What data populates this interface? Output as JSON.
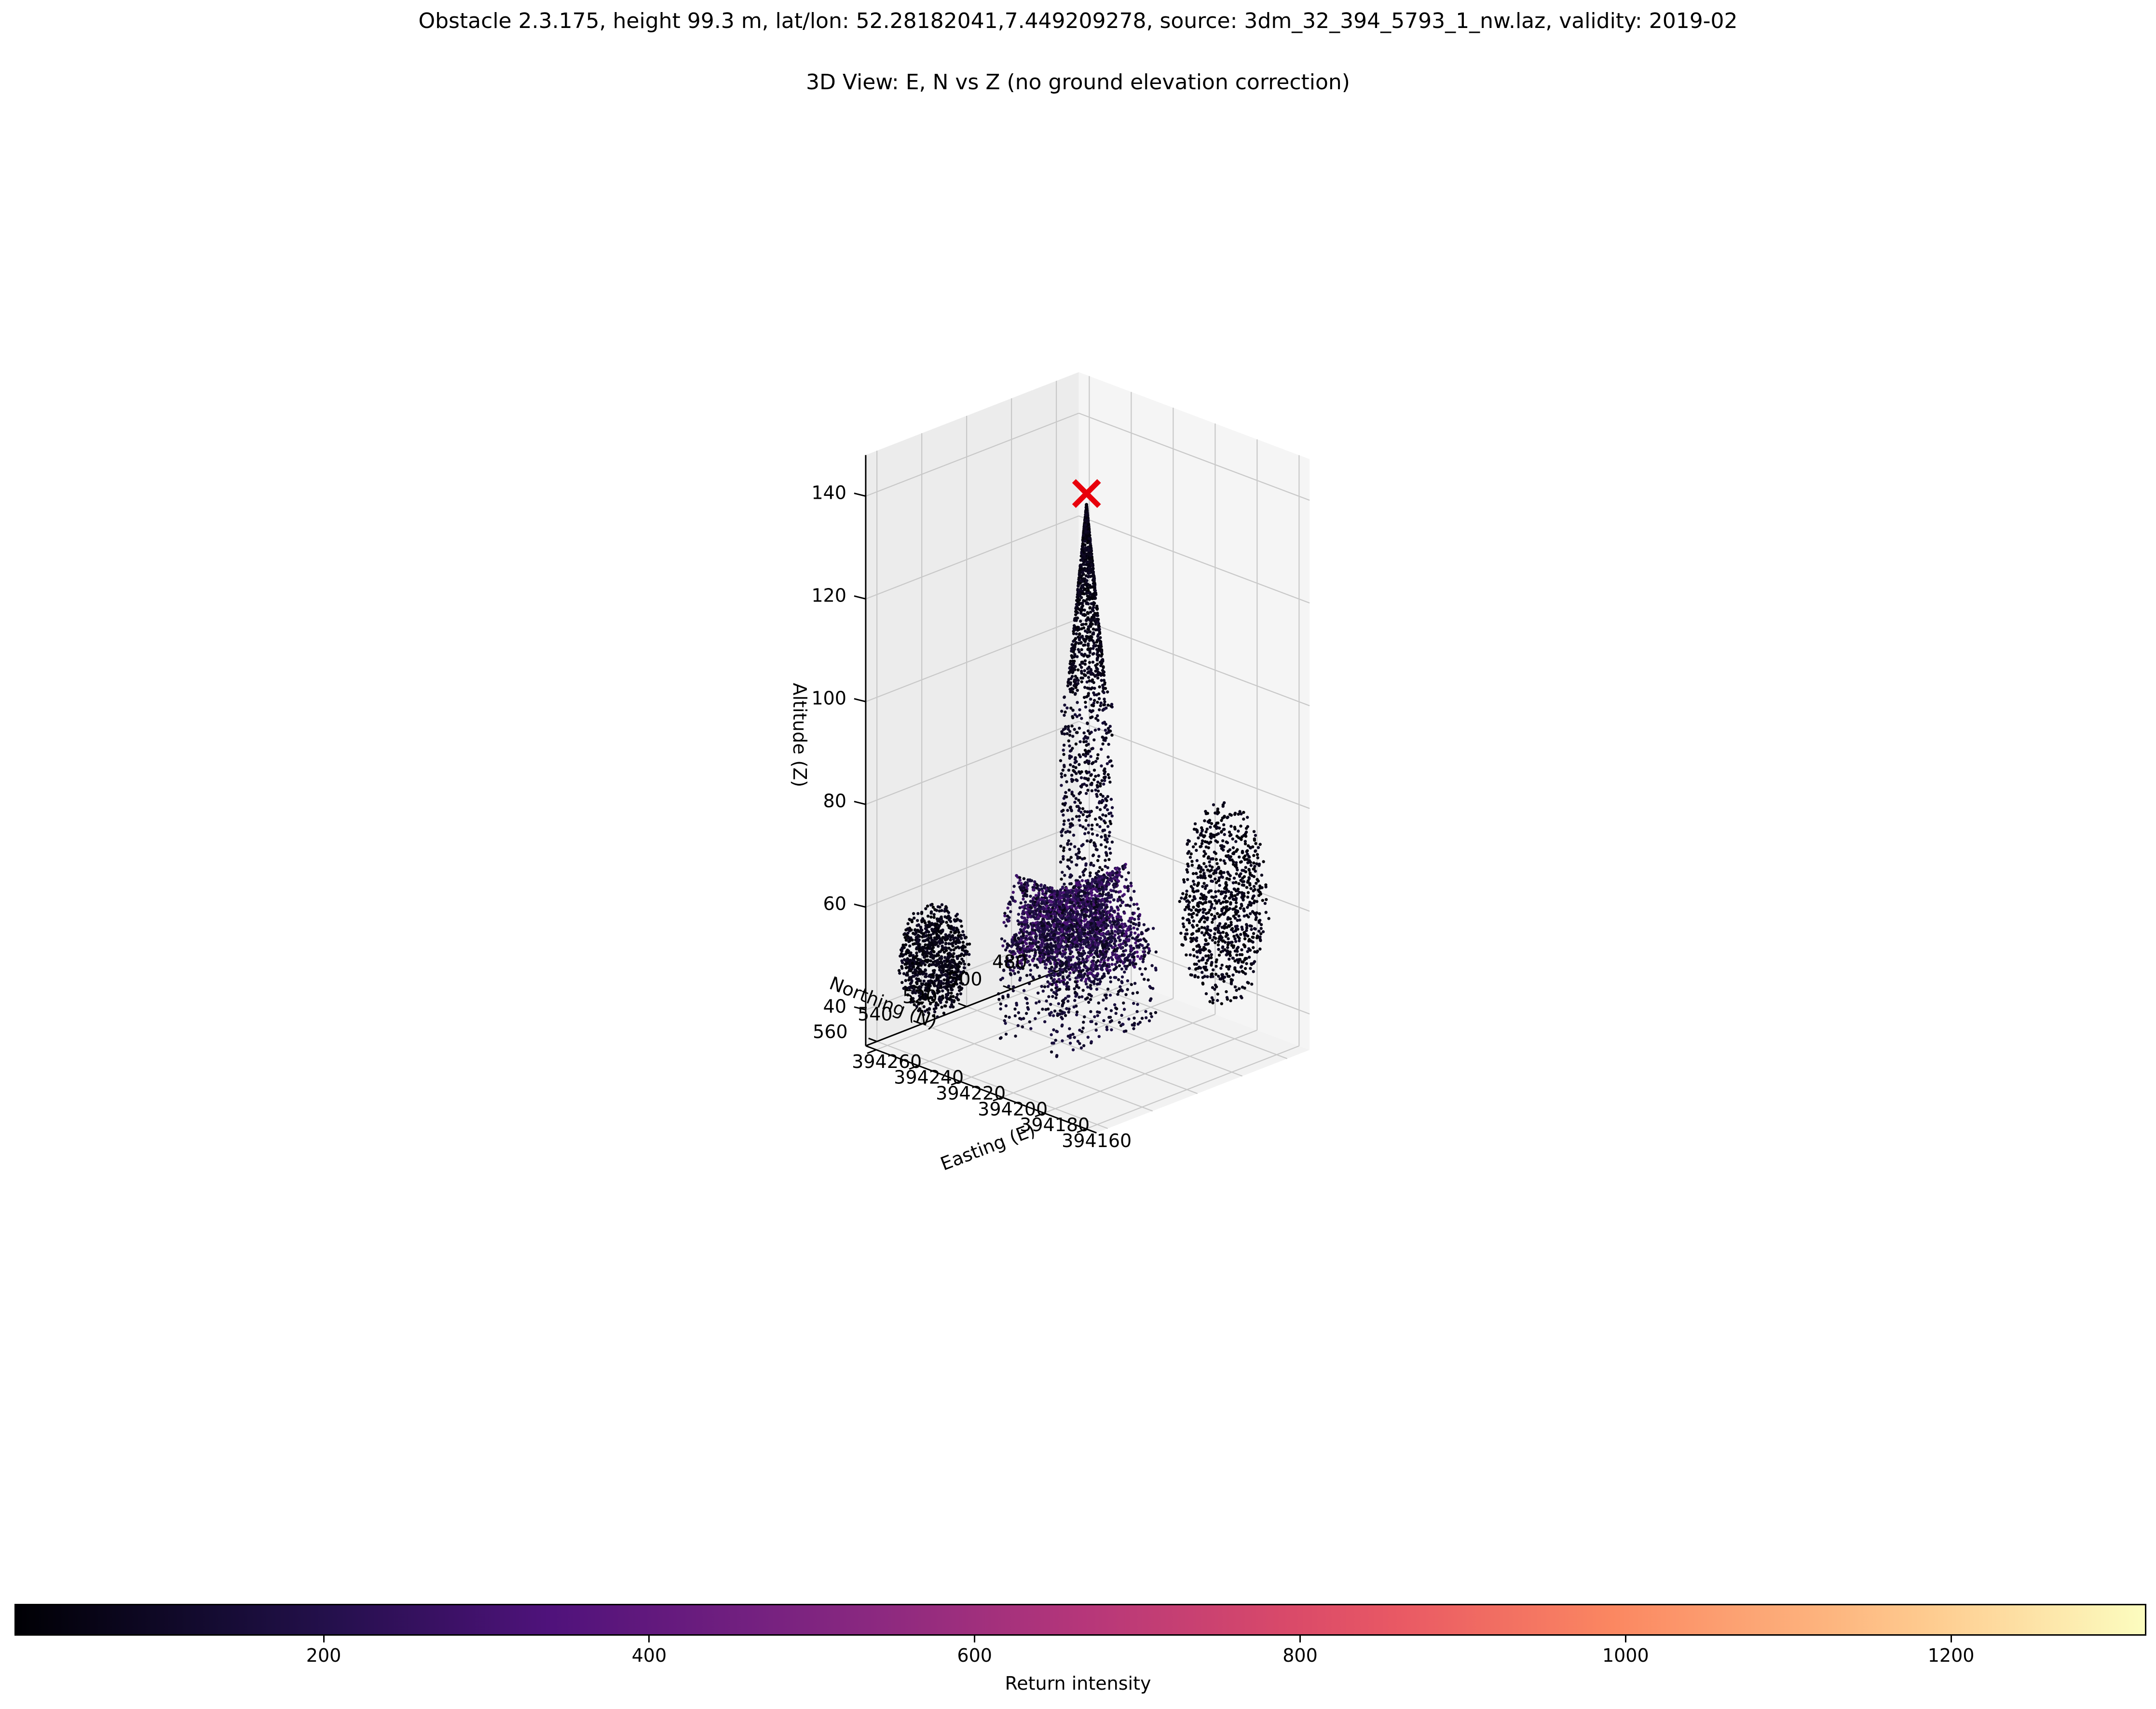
{
  "header": {
    "title": "Obstacle 2.3.175, height 99.3 m, lat/lon: 52.28182041,7.449209278, source: 3dm_32_394_5793_1_nw.laz, validity: 2019-02",
    "subtitle": "3D View: E, N vs Z (no ground elevation correction)"
  },
  "chart_data": {
    "type": "scatter",
    "projection": "3d",
    "xlabel": "Easting (E)",
    "ylabel": "Northing (N)",
    "zlabel": "Altitude (Z)",
    "x_ticks": [
      "394160",
      "394180",
      "394200",
      "394220",
      "394240",
      "394260"
    ],
    "y_ticks": [
      "480",
      "500",
      "520",
      "540",
      "560"
    ],
    "z_ticks": [
      "40",
      "60",
      "80",
      "100",
      "120",
      "140"
    ],
    "xlim": [
      394155,
      394265
    ],
    "ylim": [
      470,
      565
    ],
    "zlim": [
      33,
      148
    ],
    "grid": true,
    "colormap": "magma",
    "colorbar": {
      "label": "Return intensity",
      "ticks": [
        "200",
        "400",
        "600",
        "800",
        "1000",
        "1200"
      ],
      "range": [
        10,
        1320
      ],
      "location": "bottom"
    },
    "obstacle_marker": {
      "easting": 394210,
      "northing": 518,
      "altitude": 141,
      "marker": "x",
      "color": "#e8000b"
    },
    "point_cloud": {
      "description_elements": [
        {
          "name": "spire",
          "easting": [
            394203,
            394217
          ],
          "northing": [
            511,
            525
          ],
          "altitude": [
            62,
            141
          ]
        },
        {
          "name": "church-nave",
          "easting": [
            394190,
            394240
          ],
          "northing": [
            495,
            545
          ],
          "altitude": [
            40,
            70
          ]
        },
        {
          "name": "tree-cluster-west",
          "easting": [
            394165,
            394195
          ],
          "northing": [
            470,
            500
          ],
          "altitude": [
            40,
            80
          ]
        },
        {
          "name": "tree-cluster-east",
          "easting": [
            394240,
            394262
          ],
          "northing": [
            535,
            560
          ],
          "altitude": [
            38,
            60
          ]
        }
      ],
      "intensity_range": [
        10,
        700
      ]
    }
  }
}
